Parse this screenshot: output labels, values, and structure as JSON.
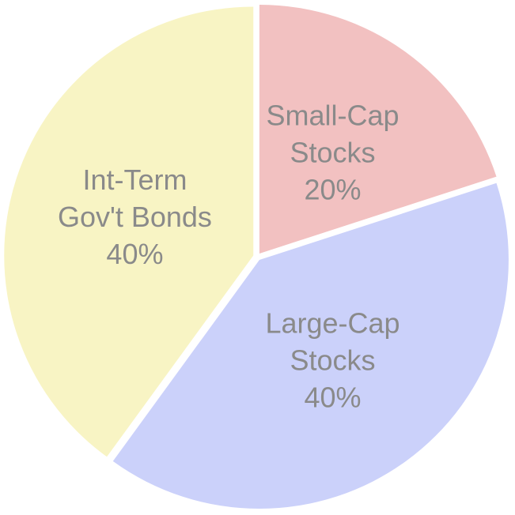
{
  "chart_data": {
    "type": "pie",
    "slices": [
      {
        "label_lines": [
          "Small-Cap",
          "Stocks"
        ],
        "value_label": "20%",
        "value": 20,
        "color": "#f2c1c1"
      },
      {
        "label_lines": [
          "Large-Cap",
          "Stocks"
        ],
        "value_label": "40%",
        "value": 40,
        "color": "#cbd1fa"
      },
      {
        "label_lines": [
          "Int-Term",
          "Gov't Bonds"
        ],
        "value_label": "40%",
        "value": 40,
        "color": "#f8f4c4"
      }
    ],
    "start_angle_deg": 0,
    "direction": "clockwise"
  }
}
